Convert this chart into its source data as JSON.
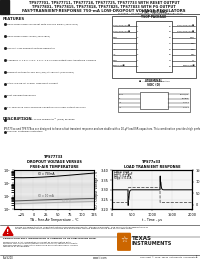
{
  "title_line1": "TPS77701, TPS77711, TPS77718, TPS77725, TPS77733 WITH RESET OUTPUT",
  "title_line2": "TPS77801, TPS77815, TPS77818, TPS77825, TPS77833 WITH PG OUTPUT",
  "title_line3": "FAST-TRANSIENT-RESPONSE 750-mA LOW-DROPOUT VOLTAGE REGULATORS",
  "subtitle": "SLVS200 – OCTOBER 1999 – REVISED FEBRUARY 2000",
  "features_title": "FEATURES",
  "features": [
    "Open Drain Power-On Reset With 200-ms Delay (TPS777xx)",
    "Open Drain Power Good (TPS778xx)",
    "750-mA Low-Dropout Voltage Regulator",
    "Available in 1.5-V, 1.8-V, 2.5-V, 3.3-V Fixed Output and Adjustable Versions",
    "Dropout Voltage to 250 mV (Typ) at 750 mA (TPS77x33)",
    "Ultra Low 85-μA Typical Quiescent Current",
    "Fast Transient Response",
    "1% Tolerance Over Specified Conditions for Fixed-Output Versions",
    "8-Pin SOIC and 20-Pin TSSOP PowerPAD™ (PWP) Package",
    "Thermal Shutdown Protection"
  ],
  "pin_header": "PWP SOIC AND\nTSOP PACKAGE",
  "left_pins": [
    "CASE/GND/INH■",
    "CASE/GND/INH■",
    "GND",
    "IN",
    "IN",
    "IN",
    "GND",
    "RESET/PG■"
  ],
  "right_pins": [
    "CASE/GND/INH■",
    "CASE/GND/INH■",
    "GND",
    "OUT",
    "OUT",
    "OUT",
    "NV",
    "RESET/PG■"
  ],
  "pin_numbers_left": [
    "1",
    "2",
    "3",
    "4",
    "5",
    "6",
    "7",
    "8"
  ],
  "pin_numbers_right": [
    "20",
    "19",
    "18",
    "17",
    "16",
    "15",
    "14",
    "13"
  ],
  "nc_note": "■ = No internal connection",
  "small_pkg_title": "8-TERMINAL\nSOIC (D)",
  "small_pkg_left": [
    "CASE",
    "PE",
    "IN",
    "IN"
  ],
  "small_pkg_right": [
    "RESET/PG",
    "ENABLE",
    "OUT 1",
    "OUT 1"
  ],
  "description_title": "DESCRIPTION",
  "description_text": "TPS777xx and TPS778xx are designed to have a fast transient response and are stable with a 10-μF low ESR capacitors. This combination provides high performance at unreasonable cost.",
  "graph1_title": "TPS77733\nDROPOUT VOLTAGE VERSUS\nFREE-AIR TEMPERATURE",
  "graph1_xlabel": "TA – Free-Air Temperature – °C",
  "graph1_ylabel": "VDO – Dropout Voltage – mV",
  "graph2_title": "TPS77x33\nLOAD TRANSIENT RESPONSE",
  "graph2_xlabel": "t – Time – μs",
  "graph2_ylabel1": "VO – Output Voltage – V",
  "graph2_ylabel2": "IO – Output Current – mA",
  "warning_text": "Please be aware that an important notice concerning availability, standard warranty, and use in critical applications of\nTexas Instruments semiconductor products and disclaimers thereto appears at the end of this data sheet.",
  "prod_data_text": "PRODUCTION DATA information is current as of publication date.\nProducts conform to specifications per the terms of Texas Instruments\nstandard warranty. Production processing does not necessarily include\ntesting of all parameters.",
  "bg_color": "#ffffff",
  "black": "#1a1a1a",
  "gray": "#888888",
  "red": "#cc0000"
}
